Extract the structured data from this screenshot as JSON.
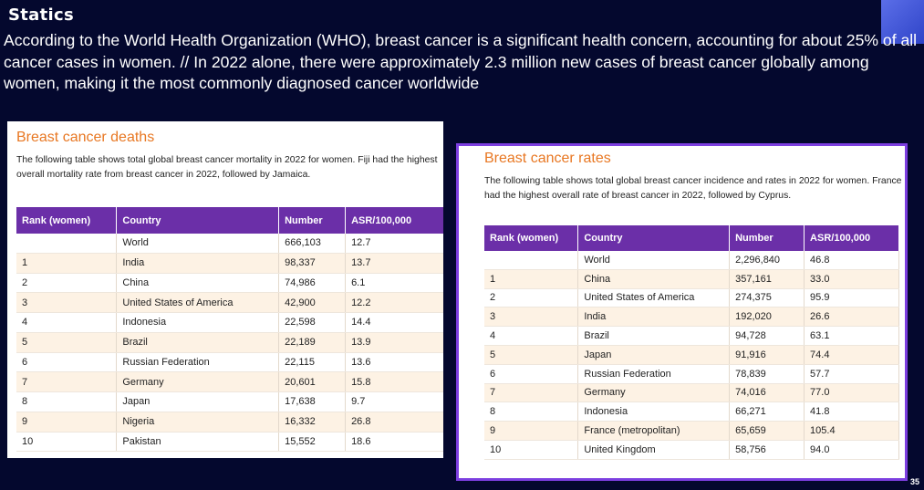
{
  "slide": {
    "title": "Statics",
    "body": "According to the World Health Organization (WHO), breast cancer is a significant health concern, accounting for about 25% of all cancer cases in women. // In 2022 alone, there were approximately 2.3 million new cases of breast cancer globally among women, making it the most commonly diagnosed cancer worldwide",
    "page_number": "35"
  },
  "colors": {
    "background": "#04082e",
    "heading": "#e87722",
    "table_header": "#6b2fa8",
    "highlight_border": "#7d3fe0"
  },
  "deaths": {
    "heading": "Breast cancer deaths",
    "description": "The following table shows total global breast cancer mortality in 2022 for women. Fiji had the highest overall mortality rate from breast cancer in 2022, followed by Jamaica.",
    "columns": [
      "Rank (women)",
      "Country",
      "Number",
      "ASR/100,000"
    ],
    "rows": [
      [
        "",
        "World",
        "666,103",
        "12.7"
      ],
      [
        "1",
        "India",
        "98,337",
        "13.7"
      ],
      [
        "2",
        "China",
        "74,986",
        "6.1"
      ],
      [
        "3",
        "United States of America",
        "42,900",
        "12.2"
      ],
      [
        "4",
        "Indonesia",
        "22,598",
        "14.4"
      ],
      [
        "5",
        "Brazil",
        "22,189",
        "13.9"
      ],
      [
        "6",
        "Russian Federation",
        "22,115",
        "13.6"
      ],
      [
        "7",
        "Germany",
        "20,601",
        "15.8"
      ],
      [
        "8",
        "Japan",
        "17,638",
        "9.7"
      ],
      [
        "9",
        "Nigeria",
        "16,332",
        "26.8"
      ],
      [
        "10",
        "Pakistan",
        "15,552",
        "18.6"
      ]
    ]
  },
  "rates": {
    "heading": "Breast cancer rates",
    "description": "The following table shows total global breast cancer incidence and rates in 2022 for women. France had the highest overall rate of breast cancer in 2022, followed by Cyprus.",
    "columns": [
      "Rank (women)",
      "Country",
      "Number",
      "ASR/100,000"
    ],
    "rows": [
      [
        "",
        "World",
        "2,296,840",
        "46.8"
      ],
      [
        "1",
        "China",
        "357,161",
        "33.0"
      ],
      [
        "2",
        "United States of America",
        "274,375",
        "95.9"
      ],
      [
        "3",
        "India",
        "192,020",
        "26.6"
      ],
      [
        "4",
        "Brazil",
        "94,728",
        "63.1"
      ],
      [
        "5",
        "Japan",
        "91,916",
        "74.4"
      ],
      [
        "6",
        "Russian Federation",
        "78,839",
        "57.7"
      ],
      [
        "7",
        "Germany",
        "74,016",
        "77.0"
      ],
      [
        "8",
        "Indonesia",
        "66,271",
        "41.8"
      ],
      [
        "9",
        "France (metropolitan)",
        "65,659",
        "105.4"
      ],
      [
        "10",
        "United Kingdom",
        "58,756",
        "94.0"
      ]
    ]
  }
}
